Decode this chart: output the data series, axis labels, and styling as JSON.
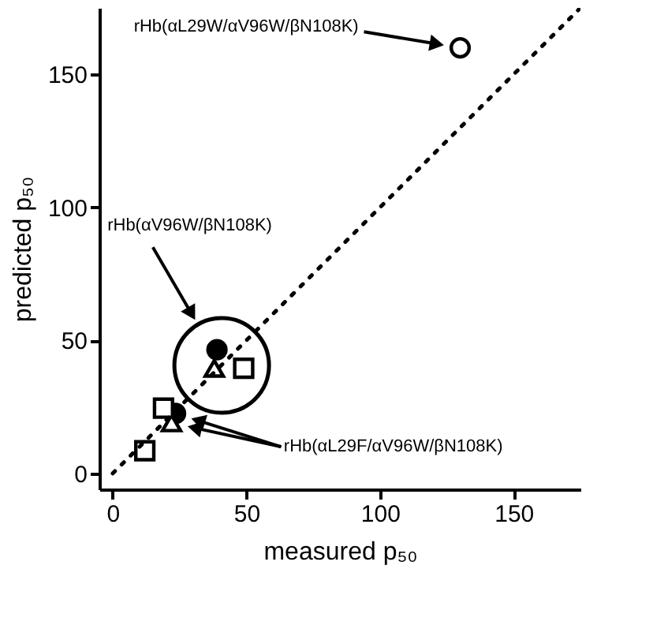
{
  "chart_data": {
    "type": "scatter",
    "xlabel": "measured p₅₀",
    "ylabel": "predicted p₅₀",
    "xlim": [
      -5,
      175
    ],
    "ylim": [
      -6,
      175
    ],
    "xticks": [
      0,
      50,
      100,
      150
    ],
    "yticks": [
      0,
      50,
      100,
      150
    ],
    "grid": false,
    "series": [
      {
        "color": "#000000",
        "marker": "circle",
        "x": [
          130
        ],
        "values": [
          160
        ]
      },
      {
        "color": "#000000",
        "marker": "circle",
        "x": [
          39,
          23.5
        ],
        "values": [
          46.5,
          22.5
        ]
      },
      {
        "color": "#000000",
        "marker": "triangle",
        "x": [
          38,
          22
        ],
        "values": [
          39.5,
          19
        ]
      },
      {
        "color": "#000000",
        "marker": "square",
        "x": [
          49,
          19,
          12
        ],
        "values": [
          39.5,
          24.5,
          8.5
        ]
      },
      {
        "type": "line",
        "color": "#000000",
        "line_style": "dotted",
        "x": [
          0,
          175
        ],
        "values": [
          0,
          175
        ]
      }
    ],
    "annotations": [
      "rHb(αL29W/αV96W/βN108K)",
      "rHb(αV96W/βN108K)",
      "rHb(αL29F/αV96W/βN108K)"
    ]
  }
}
